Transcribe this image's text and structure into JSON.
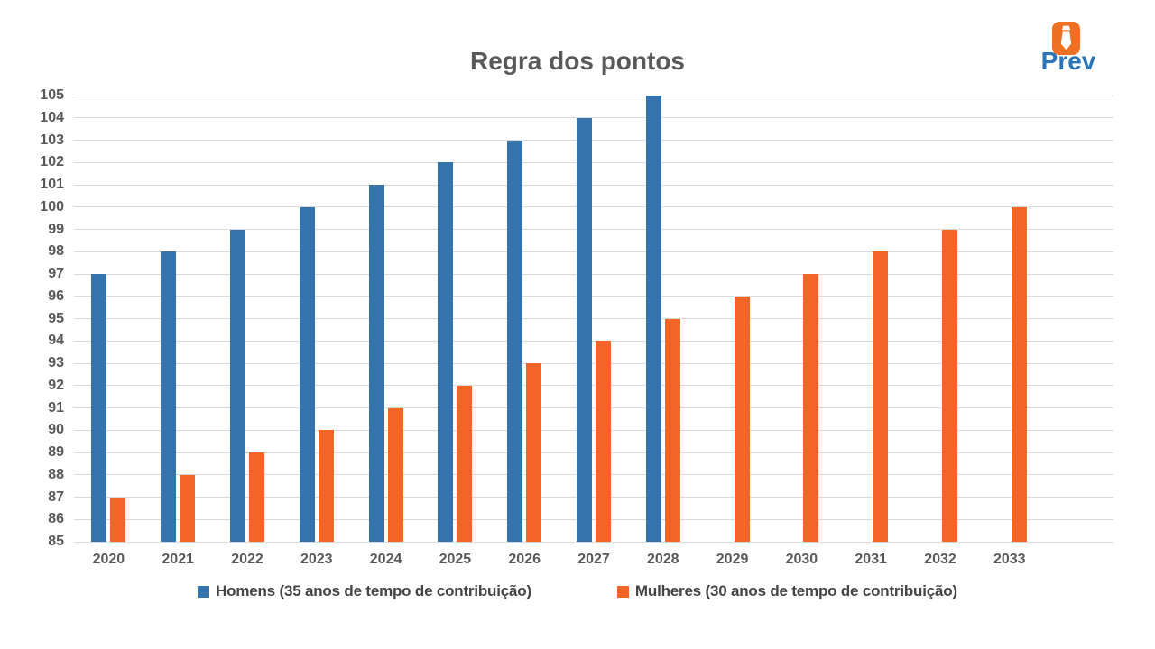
{
  "logo": {
    "text": "Prev",
    "text_color": "#2C74B8",
    "icon": "tie-icon",
    "icon_bg": "#EF7023",
    "icon_fg": "#FFFFFF"
  },
  "chart_data": {
    "type": "bar",
    "title": "Regra dos pontos",
    "categories": [
      "2020",
      "2021",
      "2022",
      "2023",
      "2024",
      "2025",
      "2026",
      "2027",
      "2028",
      "2029",
      "2030",
      "2031",
      "2032",
      "2033"
    ],
    "series": [
      {
        "name": "Homens (35 anos de tempo de contribuição)",
        "color": "#3473AB",
        "values": [
          97,
          98,
          99,
          100,
          101,
          102,
          103,
          104,
          105,
          null,
          null,
          null,
          null,
          null
        ]
      },
      {
        "name": "Mulheres (30 anos de tempo de contribuição)",
        "color": "#F26527",
        "values": [
          87,
          88,
          89,
          90,
          91,
          92,
          93,
          94,
          95,
          96,
          97,
          98,
          99,
          100
        ]
      }
    ],
    "xlabel": "",
    "ylabel": "",
    "ylim": [
      85,
      105
    ],
    "ytick_step": 1,
    "grid": true,
    "legend_position": "bottom",
    "x_slots": 15,
    "colors": {
      "gridline": "#D9D9D9",
      "axis_text": "#595959",
      "title_text": "#595959",
      "legend_text": "#444444"
    }
  }
}
